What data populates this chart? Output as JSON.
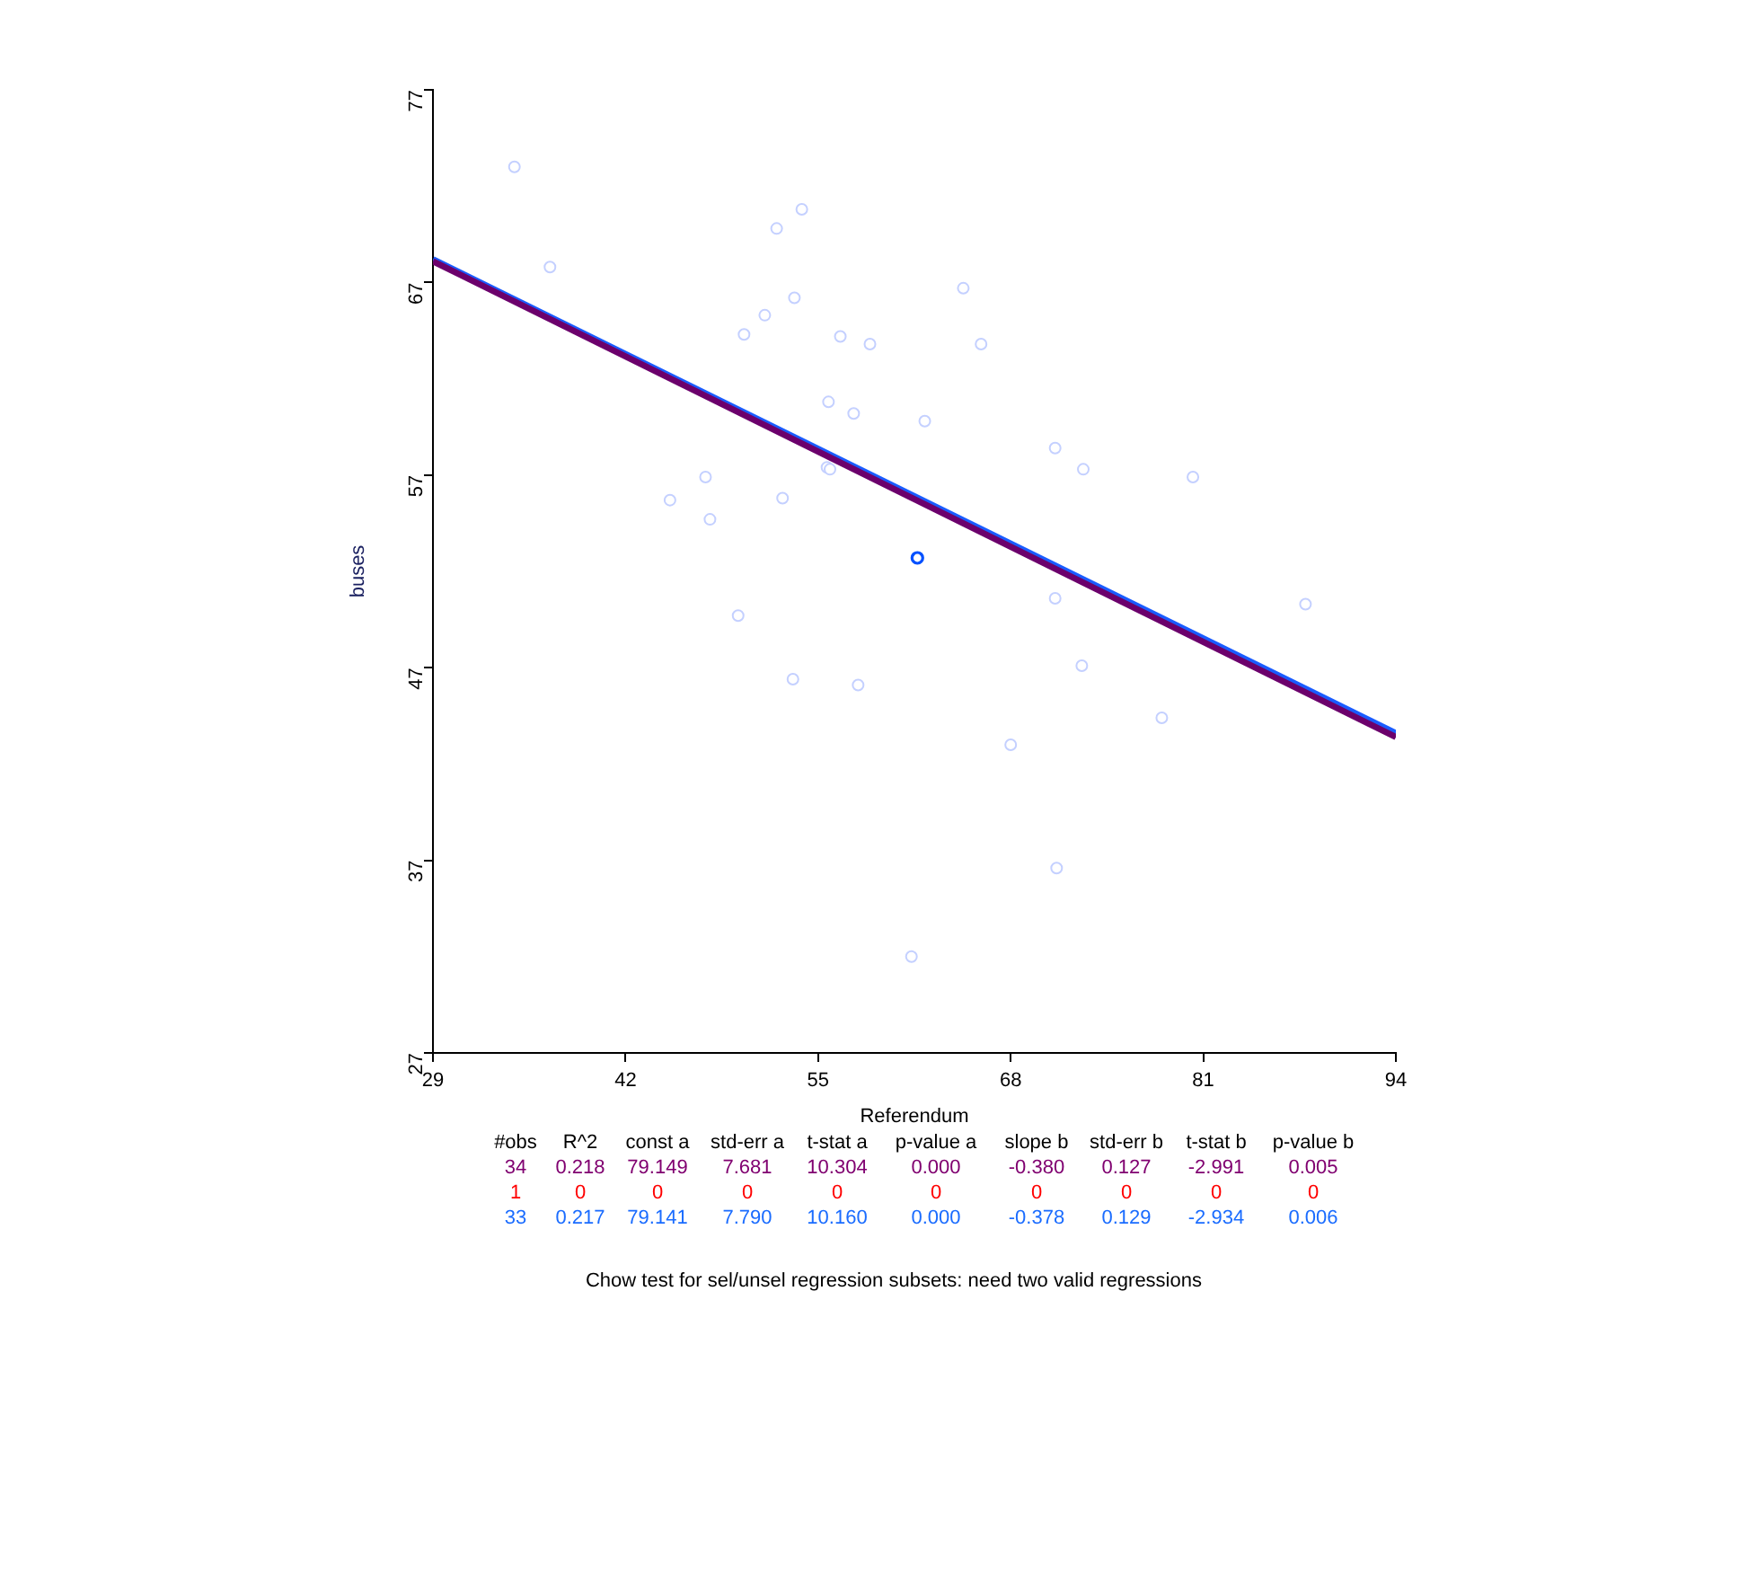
{
  "chart_data": {
    "type": "scatter",
    "xlabel": "Referendum",
    "ylabel": "buses",
    "xlim": [
      29,
      94
    ],
    "xticks": [
      29,
      42,
      55,
      68,
      81,
      94
    ],
    "ylim": [
      27,
      77
    ],
    "yticks": [
      27,
      37,
      47,
      57,
      67,
      77
    ],
    "grid": false,
    "legend": false,
    "marker": "circle",
    "series": [
      {
        "color": "#c4d0ff",
        "x": [
          34.5,
          36.9,
          52.2,
          53.9,
          53.4,
          51.4,
          50.0,
          56.5,
          58.5,
          64.8,
          66.0,
          55.7,
          57.4,
          62.2,
          55.6,
          55.8,
          71.0,
          72.9,
          80.3,
          47.4,
          45.0,
          52.6,
          47.7,
          71.0,
          87.9,
          49.6,
          72.8,
          53.3,
          57.7,
          78.2,
          68.0,
          71.1,
          61.3
        ],
        "values": [
          73.0,
          67.8,
          69.8,
          70.8,
          66.2,
          65.3,
          64.3,
          64.2,
          63.8,
          66.7,
          63.8,
          60.8,
          60.2,
          59.8,
          57.4,
          57.3,
          58.4,
          57.3,
          56.9,
          56.9,
          55.7,
          55.8,
          54.7,
          50.6,
          50.3,
          49.7,
          47.1,
          46.4,
          46.1,
          44.4,
          43.0,
          36.6,
          32.0
        ]
      },
      {
        "color": "#0050ff",
        "x": [
          61.7
        ],
        "values": [
          52.7
        ]
      },
      {
        "type": "line",
        "color": "#1a5cff",
        "marker": "none",
        "x": [
          29,
          94
        ],
        "values": [
          68.2,
          43.6
        ]
      },
      {
        "type": "line",
        "color": "#6c006c",
        "marker": "none",
        "x": [
          29,
          94
        ],
        "values": [
          68.1,
          43.4
        ]
      }
    ],
    "annotations": [
      "#obs",
      "R^2",
      "const a",
      "std-err a",
      "t-stat a",
      "p-value a",
      "slope b",
      "std-err b",
      "t-stat b",
      "p-value b",
      "34",
      "0.218",
      "79.149",
      "7.681",
      "10.304",
      "0.000",
      "-0.380",
      "0.127",
      "-2.991",
      "0.005",
      "1",
      "0",
      "0",
      "0",
      "0",
      "0",
      "0",
      "0",
      "0",
      "0",
      "33",
      "0.217",
      "79.141",
      "7.790",
      "10.160",
      "0.000",
      "-0.378",
      "0.129",
      "-2.934",
      "0.006",
      "Chow test for sel/unsel regression subsets: need two valid regressions"
    ]
  }
}
